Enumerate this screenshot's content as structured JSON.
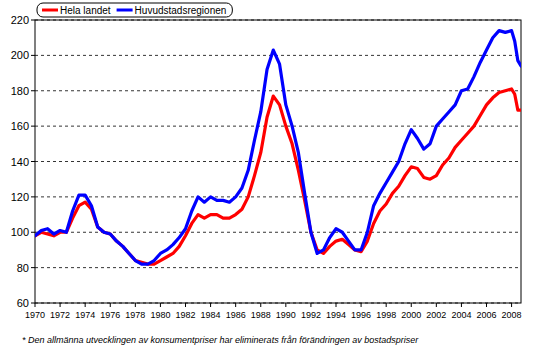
{
  "chart_data": {
    "type": "line",
    "annotations": [
      "* Den allmänna utvecklingen av konsumentpriser har eliminerats från förändringen av bostadspriser"
    ],
    "x": [
      1970,
      1970.5,
      1971,
      1971.5,
      1972,
      1972.5,
      1973,
      1973.5,
      1974,
      1974.5,
      1975,
      1975.5,
      1976,
      1976.5,
      1977,
      1977.5,
      1978,
      1978.5,
      1979,
      1979.5,
      1980,
      1980.5,
      1981,
      1981.5,
      1982,
      1982.5,
      1983,
      1983.5,
      1984,
      1984.5,
      1985,
      1985.5,
      1986,
      1986.5,
      1987,
      1987.5,
      1988,
      1988.5,
      1989,
      1989.5,
      1990,
      1990.5,
      1991,
      1991.5,
      1992,
      1992.5,
      1993,
      1993.5,
      1994,
      1994.5,
      1995,
      1995.5,
      1996,
      1996.5,
      1997,
      1997.5,
      1998,
      1998.5,
      1999,
      1999.5,
      2000,
      2000.5,
      2001,
      2001.5,
      2002,
      2002.5,
      2003,
      2003.5,
      2004,
      2004.5,
      2005,
      2005.5,
      2006,
      2006.5,
      2007,
      2007.5,
      2008,
      2008.25,
      2008.5,
      2008.75
    ],
    "series": [
      {
        "name": "Hela landet",
        "color": "#ff0000",
        "values": [
          98,
          100,
          99,
          98,
          100,
          100,
          108,
          115,
          117,
          113,
          103,
          100,
          99,
          95,
          92,
          88,
          84,
          83,
          82,
          82,
          84,
          86,
          88,
          92,
          98,
          105,
          110,
          108,
          110,
          110,
          108,
          108,
          110,
          113,
          120,
          132,
          145,
          165,
          177,
          172,
          160,
          150,
          135,
          118,
          100,
          90,
          88,
          92,
          95,
          96,
          93,
          90,
          89,
          95,
          105,
          112,
          116,
          122,
          126,
          132,
          137,
          136,
          131,
          130,
          132,
          138,
          142,
          148,
          152,
          156,
          160,
          166,
          172,
          176,
          179,
          180,
          181,
          178,
          169,
          169
        ]
      },
      {
        "name": "Huvudstadsregionen",
        "color": "#0000ff",
        "values": [
          98,
          101,
          102,
          99,
          101,
          100,
          112,
          121,
          121,
          115,
          103,
          100,
          99,
          95,
          92,
          88,
          84,
          82,
          82,
          84,
          88,
          90,
          93,
          97,
          102,
          112,
          120,
          117,
          120,
          118,
          118,
          117,
          120,
          125,
          135,
          152,
          168,
          192,
          203,
          195,
          172,
          160,
          145,
          122,
          100,
          88,
          90,
          97,
          102,
          100,
          95,
          90,
          90,
          100,
          115,
          122,
          128,
          134,
          140,
          150,
          158,
          153,
          147,
          150,
          160,
          164,
          168,
          172,
          180,
          181,
          188,
          196,
          203,
          210,
          214,
          213,
          214,
          208,
          197,
          194
        ]
      }
    ],
    "xlim": [
      1970,
      2008.75
    ],
    "xticks": [
      1970,
      1972,
      1974,
      1976,
      1978,
      1980,
      1982,
      1984,
      1986,
      1988,
      1990,
      1992,
      1994,
      1996,
      1998,
      2000,
      2002,
      2004,
      2006,
      2008
    ],
    "ylim": [
      60,
      220
    ],
    "yticks": [
      60,
      80,
      100,
      120,
      140,
      160,
      180,
      200,
      220
    ],
    "grid": true,
    "legend": "top-left"
  }
}
